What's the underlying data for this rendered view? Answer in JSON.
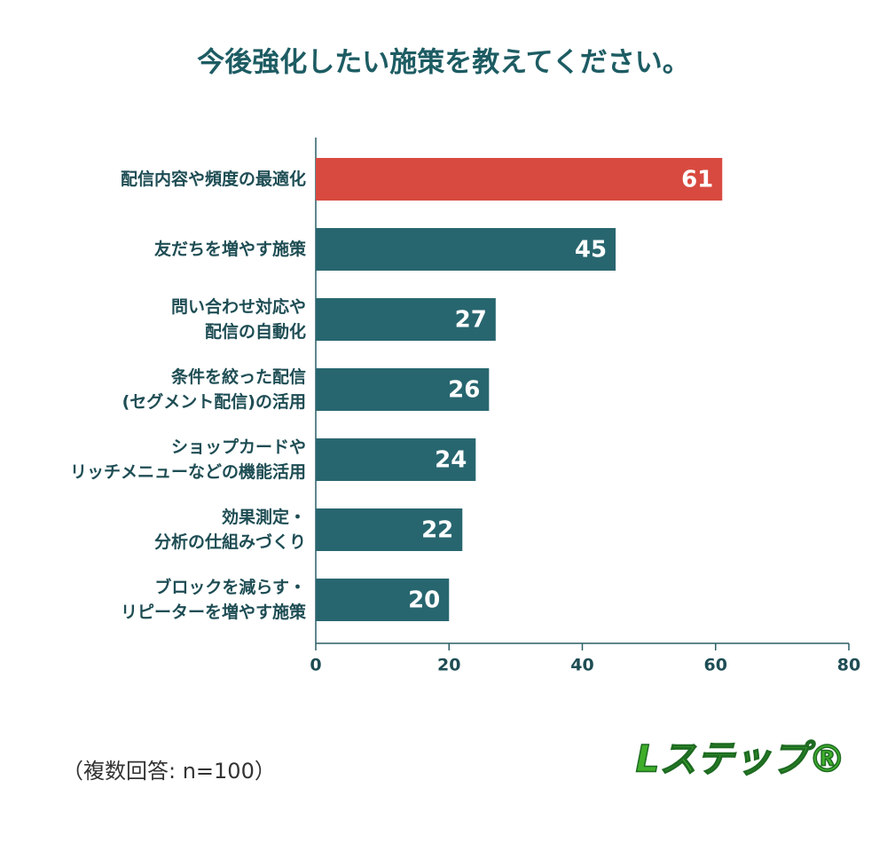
{
  "chart_data": {
    "type": "barh",
    "title": "今後強化したい施策を教えてください。",
    "categories": [
      "配信内容や頻度の最適化",
      "友だちを増やす施策",
      "問い合わせ対応や\n配信の自動化",
      "条件を絞った配信\n(セグメント配信)の活用",
      "ショップカードや\nリッチメニューなどの機能活用",
      "効果測定・\n分析の仕組みづくり",
      "ブロックを減らす・\nリピーターを増やす施策"
    ],
    "values": [
      61,
      45,
      27,
      26,
      24,
      22,
      20
    ],
    "colors": [
      "#d84a40",
      "#28666f",
      "#28666f",
      "#28666f",
      "#28666f",
      "#28666f",
      "#28666f"
    ],
    "xlim": [
      0,
      80
    ],
    "xticks": [
      0,
      20,
      40,
      60,
      80
    ],
    "note": "（複数回答: n=100）",
    "logo": "Lステップ®"
  }
}
